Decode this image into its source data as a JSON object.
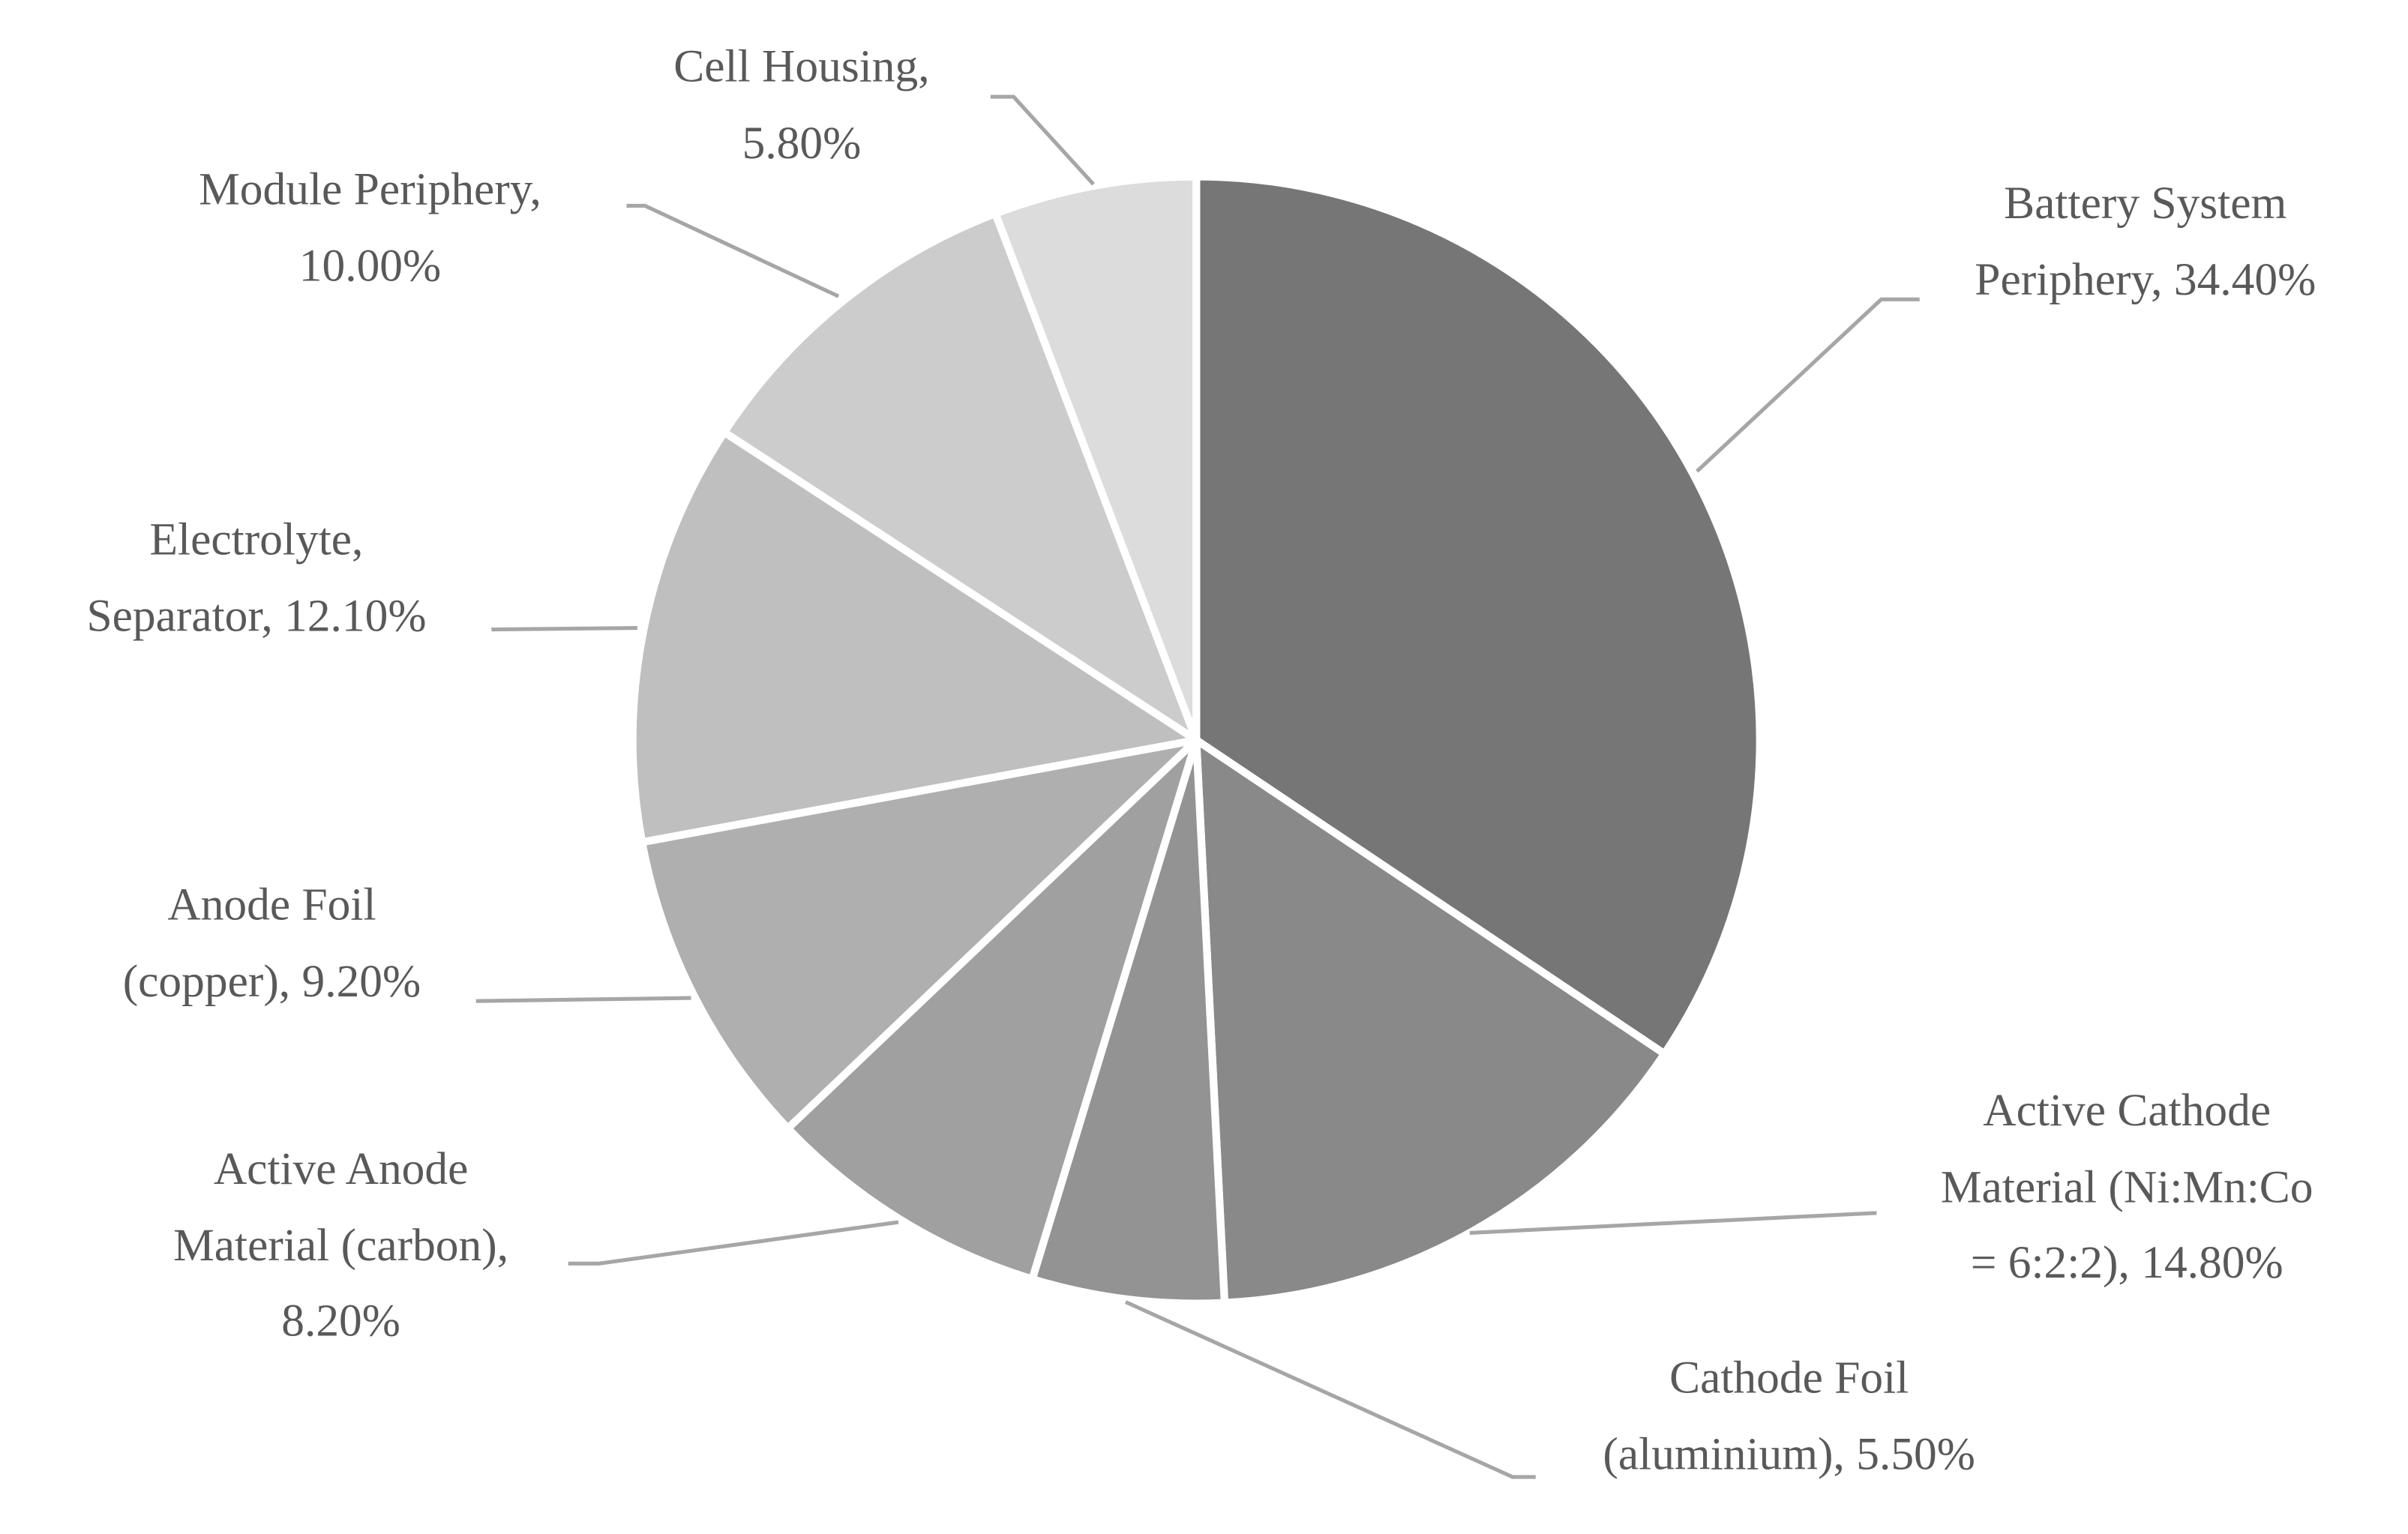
{
  "chart_data": {
    "type": "pie",
    "categories": [
      "Battery System Periphery",
      "Active Cathode Material (Ni:Mn:Co = 6:2:2)",
      "Cathode Foil (aluminium)",
      "Active Anode Material (carbon)",
      "Anode Foil (copper)",
      "Electrolyte, Separator",
      "Module Periphery",
      "Cell Housing"
    ],
    "values": [
      34.4,
      14.8,
      5.5,
      8.2,
      9.2,
      12.1,
      10.0,
      5.8
    ],
    "value_labels": [
      "34.40%",
      "14.80%",
      "5.50%",
      "8.20%",
      "9.20%",
      "12.10%",
      "10.00%",
      "5.80%"
    ],
    "colors": [
      "#767676",
      "#898989",
      "#939393",
      "#a0a0a0",
      "#afafaf",
      "#bfbfbf",
      "#cccccc",
      "#dcdcdc"
    ]
  }
}
